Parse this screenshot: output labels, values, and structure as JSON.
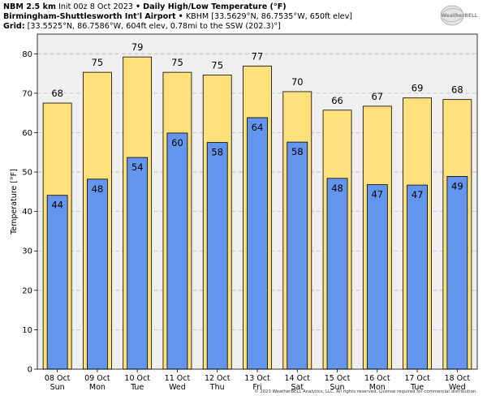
{
  "header": {
    "model": "NBM 2.5 km",
    "init": "Init 00z 8 Oct 2023",
    "bullet": "•",
    "product": "Daily High/Low Temperature (°F)",
    "station_name": "Birmingham-Shuttlesworth Int'l Airport",
    "station_info": "KBHM [33.5629°N, 86.7535°W, 650ft elev]",
    "grid_label": "Grid",
    "grid_info": "[33.5525°N, 86.7586°W, 604ft elev, 0.78mi to the SSW (202.3)°]"
  },
  "logo": {
    "text": "WeatherBELL"
  },
  "copyright": "© 2023 WeatherBELL Analytics, LLC. All rights reserved. License required for commercial distribution.",
  "chart_data": {
    "type": "bar",
    "ylabel": "Temperature [°F]",
    "ylim": [
      0,
      85
    ],
    "yticks": [
      0,
      10,
      20,
      30,
      40,
      50,
      60,
      70,
      80
    ],
    "grid": true,
    "categories": [
      "08 Oct",
      "09 Oct",
      "10 Oct",
      "11 Oct",
      "12 Oct",
      "13 Oct",
      "14 Oct",
      "15 Oct",
      "16 Oct",
      "17 Oct",
      "18 Oct"
    ],
    "days": [
      "Sun",
      "Mon",
      "Tue",
      "Wed",
      "Thu",
      "Fri",
      "Sat",
      "Sun",
      "Mon",
      "Tue",
      "Wed"
    ],
    "series": [
      {
        "key": "high",
        "values": [
          67.5,
          75.3,
          79.2,
          75.3,
          74.6,
          76.9,
          70.4,
          65.7,
          66.7,
          68.8,
          68.4
        ],
        "labels": [
          "68",
          "75",
          "79",
          "75",
          "75",
          "77",
          "70",
          "66",
          "67",
          "69",
          "68"
        ]
      },
      {
        "key": "low",
        "values": [
          44.1,
          48.2,
          53.7,
          59.9,
          57.5,
          63.8,
          57.6,
          48.4,
          46.8,
          46.7,
          48.9
        ],
        "labels": [
          "44",
          "48",
          "54",
          "60",
          "58",
          "64",
          "58",
          "48",
          "47",
          "47",
          "49"
        ]
      }
    ],
    "colors": {
      "high": "#ffe07a",
      "low": "#6495ed",
      "background": "#efefef",
      "grid": "#bbbbbb"
    }
  }
}
